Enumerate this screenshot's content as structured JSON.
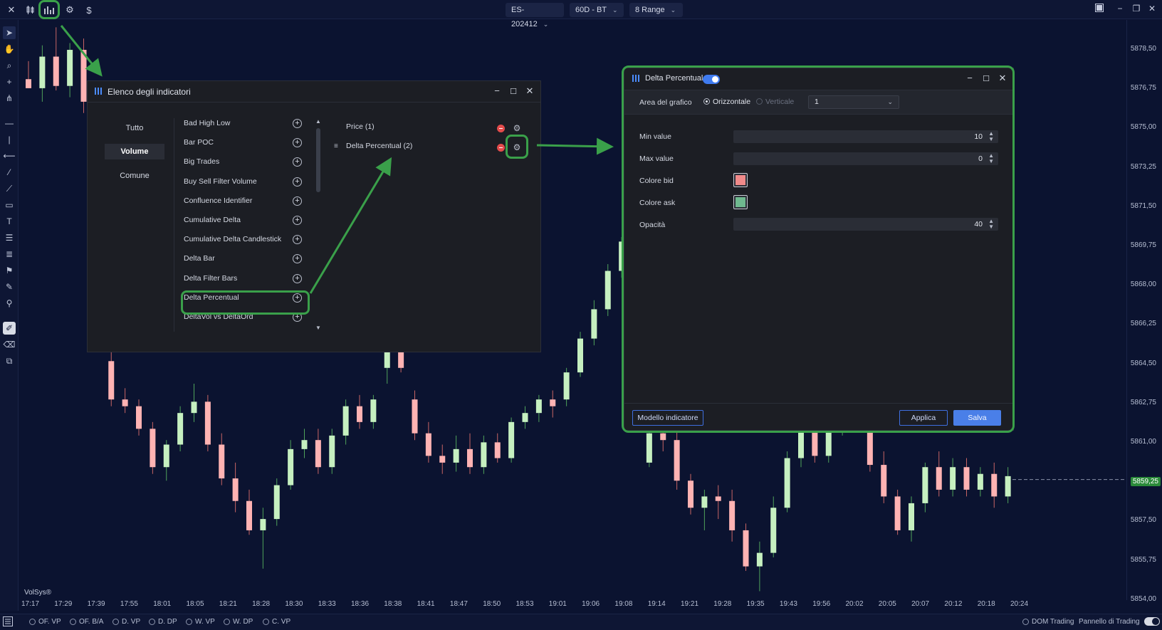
{
  "topbar": {
    "symbol": "ES-202412",
    "timeframe": "60D - BT",
    "range": "8 Range",
    "dollar": "$"
  },
  "price_axis": [
    "5878,50",
    "5876,75",
    "5875,00",
    "5873,25",
    "5871,50",
    "5869,75",
    "5868,00",
    "5866,25",
    "5864,50",
    "5862,75",
    "5861,00",
    "5859,25",
    "5857,50",
    "5855,75",
    "5854,00"
  ],
  "current_price": "5859,25",
  "time_axis": [
    "17:17",
    "17:29",
    "17:39",
    "17:55",
    "18:01",
    "18:05",
    "18:21",
    "18:28",
    "18:30",
    "18:33",
    "18:36",
    "18:38",
    "18:41",
    "18:47",
    "18:50",
    "18:53",
    "19:01",
    "19:06",
    "19:08",
    "19:14",
    "19:21",
    "19:28",
    "19:35",
    "19:43",
    "19:56",
    "20:02",
    "20:05",
    "20:07",
    "20:12",
    "20:18",
    "20:24"
  ],
  "watermark": "VolSys®",
  "bottombar": {
    "items": [
      "OF. VP",
      "OF. B/A",
      "D. VP",
      "D. DP",
      "W. VP",
      "W. DP",
      "C. VP"
    ],
    "dom": "DOM Trading",
    "panel": "Pannello di Trading"
  },
  "indicator_dialog": {
    "title": "Elenco degli indicatori",
    "categories": [
      "Tutto",
      "Volume",
      "Comune"
    ],
    "active_category": "Volume",
    "items": [
      "Bad High Low",
      "Bar POC",
      "Big Trades",
      "Buy Sell Filter Volume",
      "Confluence Identifier",
      "Cumulative Delta",
      "Cumulative Delta Candlestick",
      "Delta Bar",
      "Delta Filter Bars",
      "Delta Percentual",
      "DeltaVol vs DeltaOrd"
    ],
    "active": [
      "Price (1)",
      "Delta Percentual (2)"
    ]
  },
  "settings_dialog": {
    "title": "Delta Percentual",
    "area_label": "Area del grafico",
    "orient_h": "Orizzontale",
    "orient_v": "Verticale",
    "area_value": "1",
    "min_label": "Min value",
    "min_value": "10",
    "max_label": "Max value",
    "max_value": "0",
    "bid_label": "Colore bid",
    "ask_label": "Colore ask",
    "opacity_label": "Opacità",
    "opacity_value": "40",
    "bid_color": "#f08a8a",
    "ask_color": "#6fb98f",
    "template_btn": "Modello indicatore",
    "apply_btn": "Applica",
    "save_btn": "Salva"
  },
  "chart_data": {
    "type": "candlestick",
    "up_color": "#c6f0c0",
    "down_color": "#ffb3b3",
    "ylim": [
      5854.0,
      5879.5
    ],
    "candles": [
      {
        "o": 5877.0,
        "h": 5877.8,
        "l": 5876.6,
        "c": 5876.6
      },
      {
        "o": 5876.6,
        "h": 5878.5,
        "l": 5876.0,
        "c": 5878.0
      },
      {
        "o": 5878.0,
        "h": 5879.3,
        "l": 5876.5,
        "c": 5876.7
      },
      {
        "o": 5876.7,
        "h": 5878.6,
        "l": 5876.2,
        "c": 5878.3
      },
      {
        "o": 5878.3,
        "h": 5878.8,
        "l": 5875.5,
        "c": 5876.0
      },
      {
        "o": 5876.0,
        "h": 5876.5,
        "l": 5874.8,
        "c": 5875.8
      },
      {
        "o": 5864.5,
        "h": 5865.0,
        "l": 5862.5,
        "c": 5862.8
      },
      {
        "o": 5862.8,
        "h": 5863.3,
        "l": 5862.2,
        "c": 5862.5
      },
      {
        "o": 5862.5,
        "h": 5862.8,
        "l": 5861.2,
        "c": 5861.5
      },
      {
        "o": 5861.5,
        "h": 5861.8,
        "l": 5859.5,
        "c": 5859.8
      },
      {
        "o": 5859.8,
        "h": 5861.0,
        "l": 5859.2,
        "c": 5860.8
      },
      {
        "o": 5860.8,
        "h": 5862.5,
        "l": 5860.5,
        "c": 5862.2
      },
      {
        "o": 5862.2,
        "h": 5863.5,
        "l": 5861.8,
        "c": 5862.7
      },
      {
        "o": 5862.7,
        "h": 5863.0,
        "l": 5860.5,
        "c": 5860.8
      },
      {
        "o": 5860.8,
        "h": 5861.3,
        "l": 5859.0,
        "c": 5859.3
      },
      {
        "o": 5859.3,
        "h": 5860.0,
        "l": 5857.8,
        "c": 5858.3
      },
      {
        "o": 5858.3,
        "h": 5858.8,
        "l": 5856.8,
        "c": 5857.0
      },
      {
        "o": 5857.0,
        "h": 5858.0,
        "l": 5855.3,
        "c": 5857.5
      },
      {
        "o": 5857.5,
        "h": 5859.3,
        "l": 5857.2,
        "c": 5859.0
      },
      {
        "o": 5859.0,
        "h": 5861.0,
        "l": 5858.8,
        "c": 5860.6
      },
      {
        "o": 5860.6,
        "h": 5861.5,
        "l": 5860.2,
        "c": 5861.0
      },
      {
        "o": 5861.0,
        "h": 5861.5,
        "l": 5859.5,
        "c": 5859.8
      },
      {
        "o": 5859.8,
        "h": 5861.5,
        "l": 5859.5,
        "c": 5861.2
      },
      {
        "o": 5861.2,
        "h": 5862.8,
        "l": 5860.8,
        "c": 5862.5
      },
      {
        "o": 5862.5,
        "h": 5863.0,
        "l": 5861.5,
        "c": 5861.8
      },
      {
        "o": 5861.8,
        "h": 5863.0,
        "l": 5861.5,
        "c": 5862.8
      },
      {
        "o": 5864.2,
        "h": 5866.5,
        "l": 5863.5,
        "c": 5865.4
      },
      {
        "o": 5865.4,
        "h": 5866.0,
        "l": 5864.0,
        "c": 5864.2
      },
      {
        "o": 5862.8,
        "h": 5863.2,
        "l": 5861.0,
        "c": 5861.3
      },
      {
        "o": 5861.3,
        "h": 5861.8,
        "l": 5860.0,
        "c": 5860.3
      },
      {
        "o": 5860.3,
        "h": 5860.8,
        "l": 5859.5,
        "c": 5860.0
      },
      {
        "o": 5860.0,
        "h": 5861.2,
        "l": 5859.6,
        "c": 5860.6
      },
      {
        "o": 5860.6,
        "h": 5861.3,
        "l": 5859.5,
        "c": 5859.8
      },
      {
        "o": 5859.8,
        "h": 5861.2,
        "l": 5859.5,
        "c": 5860.9
      },
      {
        "o": 5860.9,
        "h": 5861.3,
        "l": 5860.0,
        "c": 5860.2
      },
      {
        "o": 5860.2,
        "h": 5862.0,
        "l": 5860.0,
        "c": 5861.8
      },
      {
        "o": 5861.8,
        "h": 5862.5,
        "l": 5861.5,
        "c": 5862.2
      },
      {
        "o": 5862.2,
        "h": 5863.0,
        "l": 5861.8,
        "c": 5862.8
      },
      {
        "o": 5862.8,
        "h": 5863.2,
        "l": 5862.0,
        "c": 5862.5
      },
      {
        "o": 5862.8,
        "h": 5864.2,
        "l": 5862.5,
        "c": 5864.0
      },
      {
        "o": 5864.0,
        "h": 5865.8,
        "l": 5863.8,
        "c": 5865.5
      },
      {
        "o": 5865.5,
        "h": 5867.2,
        "l": 5865.2,
        "c": 5866.8
      },
      {
        "o": 5866.8,
        "h": 5868.8,
        "l": 5866.5,
        "c": 5868.5
      },
      {
        "o": 5868.5,
        "h": 5870.0,
        "l": 5868.2,
        "c": 5869.8
      },
      {
        "o": 5869.8,
        "h": 5871.2,
        "l": 5869.5,
        "c": 5870.8
      },
      {
        "o": 5860.0,
        "h": 5861.5,
        "l": 5859.8,
        "c": 5861.3
      },
      {
        "o": 5861.3,
        "h": 5861.8,
        "l": 5860.5,
        "c": 5861.0
      },
      {
        "o": 5861.0,
        "h": 5861.5,
        "l": 5858.8,
        "c": 5859.2
      },
      {
        "o": 5859.2,
        "h": 5859.5,
        "l": 5857.7,
        "c": 5858.0
      },
      {
        "o": 5858.0,
        "h": 5858.8,
        "l": 5857.0,
        "c": 5858.5
      },
      {
        "o": 5858.5,
        "h": 5859.0,
        "l": 5857.5,
        "c": 5858.3
      },
      {
        "o": 5858.3,
        "h": 5858.8,
        "l": 5856.5,
        "c": 5857.0
      },
      {
        "o": 5857.0,
        "h": 5857.3,
        "l": 5855.2,
        "c": 5855.4
      },
      {
        "o": 5855.4,
        "h": 5856.5,
        "l": 5854.3,
        "c": 5856.0
      },
      {
        "o": 5856.0,
        "h": 5858.5,
        "l": 5855.8,
        "c": 5858.0
      },
      {
        "o": 5858.0,
        "h": 5860.5,
        "l": 5857.8,
        "c": 5860.2
      },
      {
        "o": 5860.2,
        "h": 5862.0,
        "l": 5859.8,
        "c": 5861.8
      },
      {
        "o": 5861.8,
        "h": 5862.5,
        "l": 5860.0,
        "c": 5860.3
      },
      {
        "o": 5860.3,
        "h": 5862.0,
        "l": 5860.0,
        "c": 5861.5
      },
      {
        "o": 5861.5,
        "h": 5862.5,
        "l": 5861.2,
        "c": 5862.2
      },
      {
        "o": 5862.2,
        "h": 5862.8,
        "l": 5861.5,
        "c": 5861.8
      },
      {
        "o": 5861.5,
        "h": 5862.0,
        "l": 5859.6,
        "c": 5859.9
      },
      {
        "o": 5859.9,
        "h": 5860.5,
        "l": 5858.2,
        "c": 5858.5
      },
      {
        "o": 5858.5,
        "h": 5858.8,
        "l": 5856.8,
        "c": 5857.0
      },
      {
        "o": 5857.0,
        "h": 5858.5,
        "l": 5856.5,
        "c": 5858.2
      },
      {
        "o": 5858.2,
        "h": 5860.0,
        "l": 5857.8,
        "c": 5859.8
      },
      {
        "o": 5859.8,
        "h": 5860.5,
        "l": 5858.5,
        "c": 5858.8
      },
      {
        "o": 5858.8,
        "h": 5860.2,
        "l": 5858.5,
        "c": 5859.8
      },
      {
        "o": 5859.8,
        "h": 5860.2,
        "l": 5858.5,
        "c": 5858.8
      },
      {
        "o": 5858.8,
        "h": 5859.8,
        "l": 5858.5,
        "c": 5859.5
      },
      {
        "o": 5859.5,
        "h": 5860.0,
        "l": 5858.0,
        "c": 5858.5
      },
      {
        "o": 5858.5,
        "h": 5859.8,
        "l": 5858.2,
        "c": 5859.4
      }
    ]
  }
}
